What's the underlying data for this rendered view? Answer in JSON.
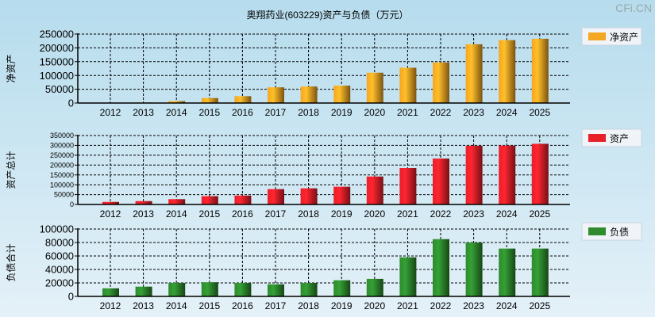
{
  "title": "奥翔药业(603229)资产与负债（万元）",
  "logo": "CFi.CN",
  "chart_data": [
    {
      "type": "bar",
      "title": "",
      "ylabel": "净资产",
      "legend": "净资产",
      "legend_position": "top-right",
      "color": "#f5a623",
      "ylim": [
        0,
        250000
      ],
      "yticks": [
        0,
        50000,
        100000,
        150000,
        200000,
        250000
      ],
      "categories": [
        "2012",
        "2013",
        "2014",
        "2015",
        "2016",
        "2017",
        "2018",
        "2019",
        "2020",
        "2021",
        "2022",
        "2023",
        "2024",
        "2025"
      ],
      "values": [
        1500,
        2000,
        7000,
        18000,
        25000,
        57000,
        60000,
        63000,
        110000,
        128000,
        147000,
        213000,
        228000,
        233000
      ]
    },
    {
      "type": "bar",
      "title": "",
      "ylabel": "资产总计",
      "legend": "资产",
      "legend_position": "top-right",
      "color": "#e8202a",
      "ylim": [
        0,
        350000
      ],
      "yticks": [
        0,
        50000,
        100000,
        150000,
        200000,
        250000,
        300000,
        350000
      ],
      "categories": [
        "2012",
        "2013",
        "2014",
        "2015",
        "2016",
        "2017",
        "2018",
        "2019",
        "2020",
        "2021",
        "2022",
        "2023",
        "2024",
        "2025"
      ],
      "values": [
        13000,
        17000,
        27000,
        42000,
        45000,
        78000,
        82000,
        90000,
        142000,
        185000,
        233000,
        298000,
        299000,
        308000
      ]
    },
    {
      "type": "bar",
      "title": "",
      "ylabel": "负债合计",
      "legend": "负债",
      "legend_position": "top-right",
      "color": "#2e8b2e",
      "ylim": [
        0,
        100000
      ],
      "yticks": [
        0,
        20000,
        40000,
        60000,
        80000,
        100000
      ],
      "categories": [
        "2012",
        "2013",
        "2014",
        "2015",
        "2016",
        "2017",
        "2018",
        "2019",
        "2020",
        "2021",
        "2022",
        "2023",
        "2024",
        "2025"
      ],
      "values": [
        12000,
        14500,
        20000,
        21000,
        20000,
        18000,
        20000,
        24000,
        26000,
        58000,
        85000,
        80000,
        71000,
        71000
      ]
    }
  ]
}
